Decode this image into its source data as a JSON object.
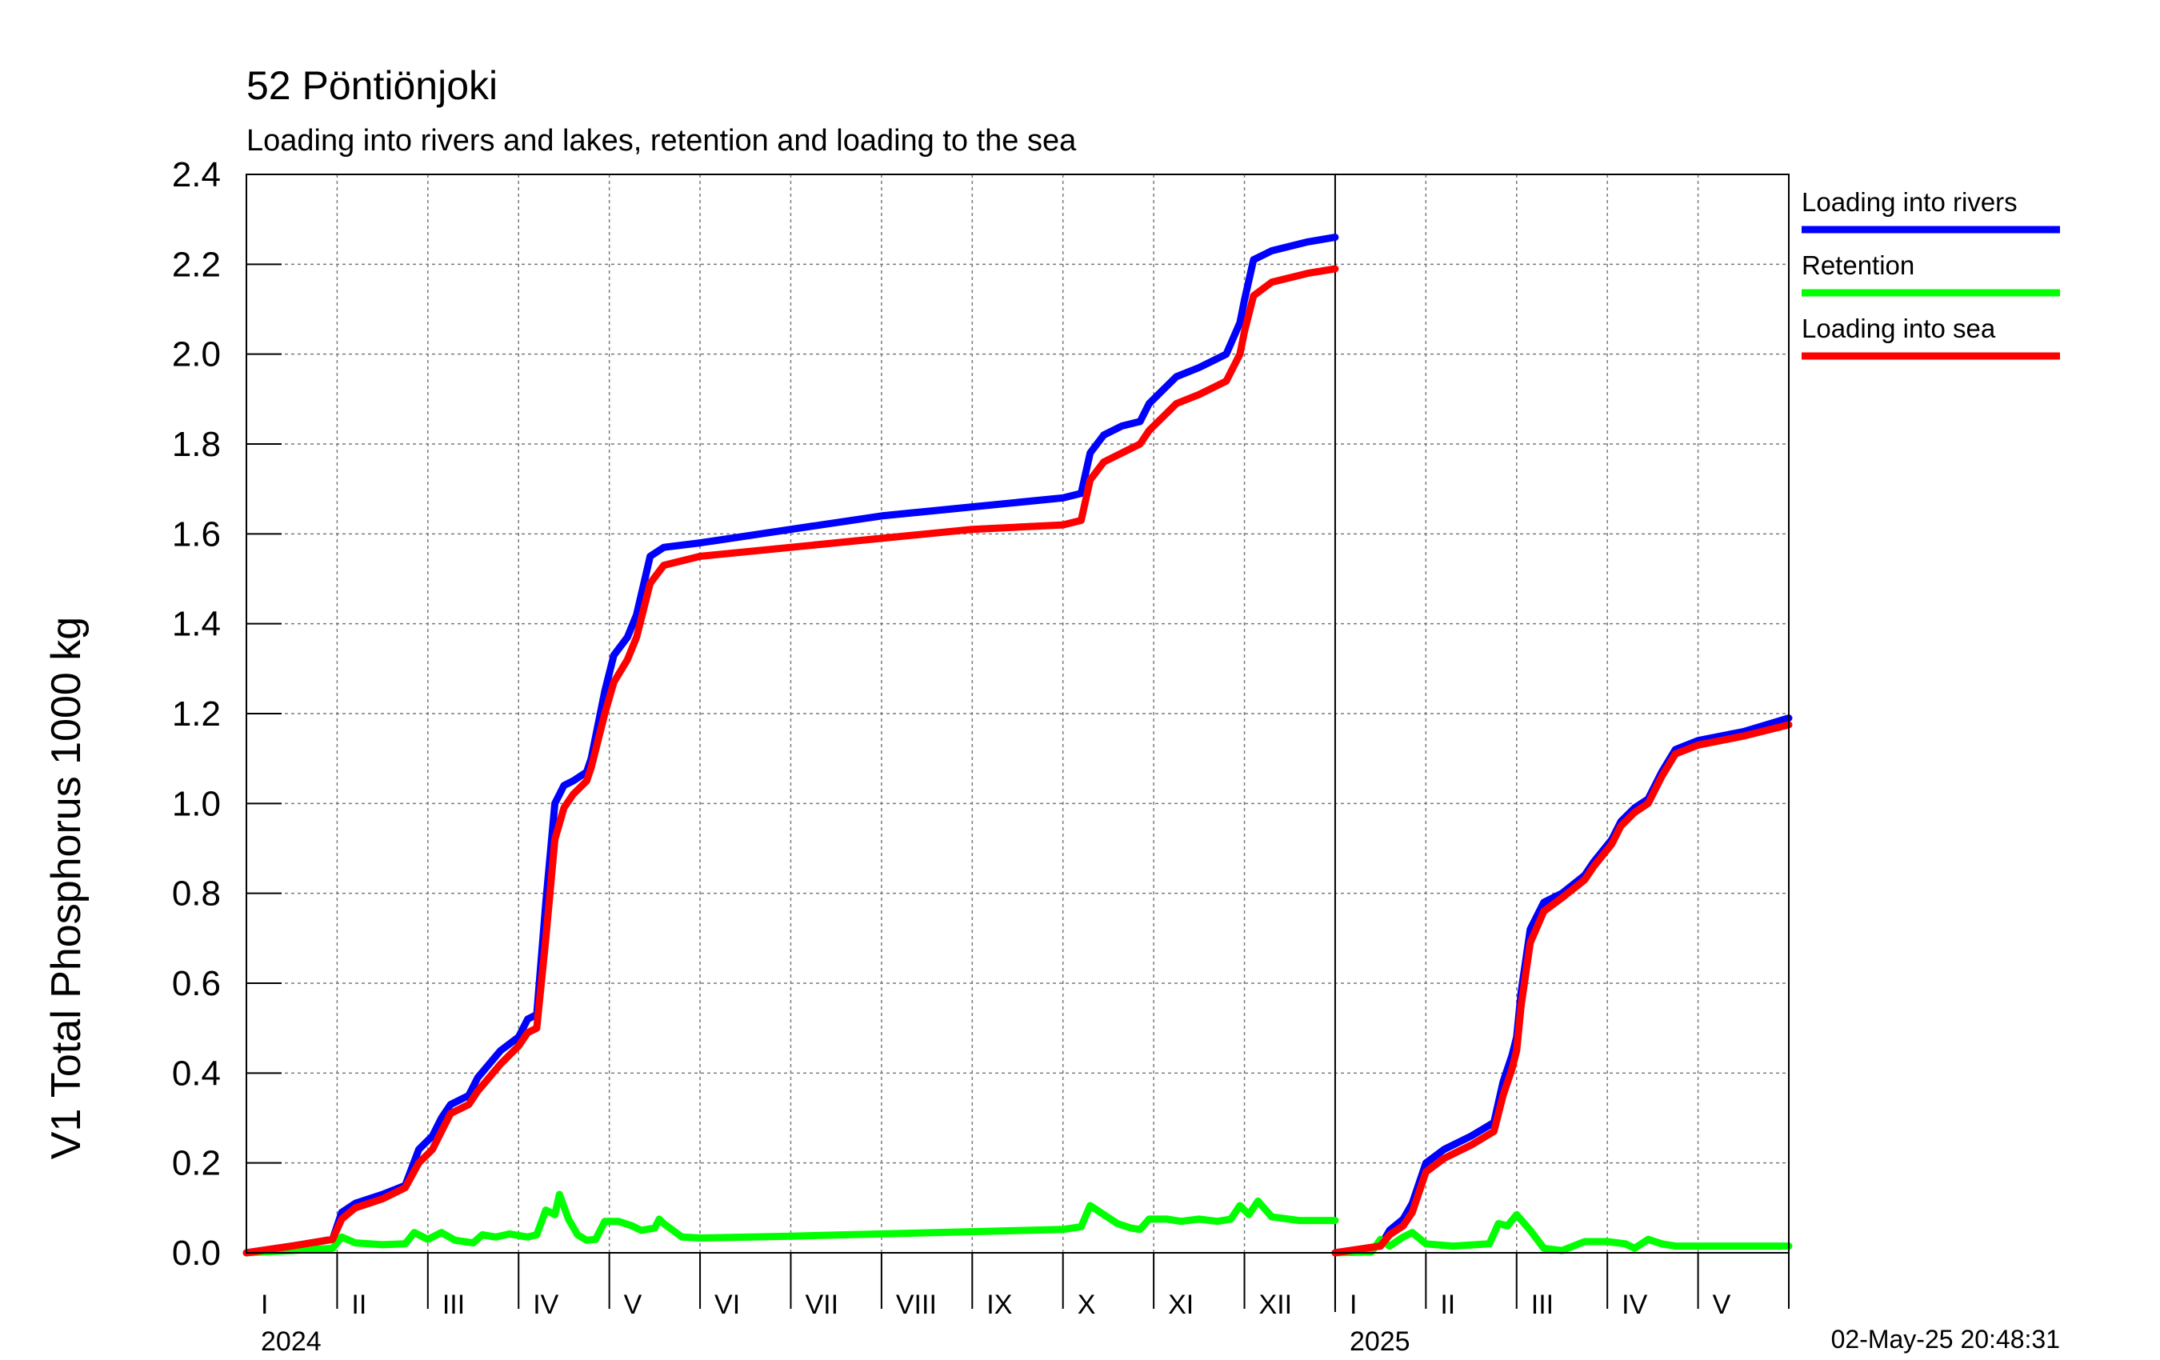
{
  "chart_data": {
    "type": "line",
    "title": "52 Pöntiönjoki",
    "subtitle": "Loading into rivers and lakes, retention and loading to the sea",
    "ylabel": "V1 Total Phosphorus 1000 kg",
    "ylim": [
      0,
      2.4
    ],
    "yticks": [
      "0.0",
      "0.2",
      "0.4",
      "0.6",
      "0.8",
      "1.0",
      "1.2",
      "1.4",
      "1.6",
      "1.8",
      "2.0",
      "2.2",
      "2.4"
    ],
    "x_unit": "month index from 2024-01-01",
    "xlim": [
      0,
      17
    ],
    "grid": true,
    "legend_position": "right",
    "timestamp": "02-May-25 20:48:31",
    "years": [
      {
        "label": "2024",
        "start": 0
      },
      {
        "label": "2025",
        "start": 12
      }
    ],
    "months": [
      {
        "label": "I",
        "start": 0,
        "end": 1
      },
      {
        "label": "II",
        "start": 1,
        "end": 2
      },
      {
        "label": "III",
        "start": 2,
        "end": 3
      },
      {
        "label": "IV",
        "start": 3,
        "end": 4
      },
      {
        "label": "V",
        "start": 4,
        "end": 5
      },
      {
        "label": "VI",
        "start": 5,
        "end": 6
      },
      {
        "label": "VII",
        "start": 6,
        "end": 7
      },
      {
        "label": "VIII",
        "start": 7,
        "end": 8
      },
      {
        "label": "IX",
        "start": 8,
        "end": 9
      },
      {
        "label": "X",
        "start": 9,
        "end": 10
      },
      {
        "label": "XI",
        "start": 10,
        "end": 11
      },
      {
        "label": "XII",
        "start": 11,
        "end": 12
      },
      {
        "label": "I",
        "start": 12,
        "end": 13
      },
      {
        "label": "II",
        "start": 13,
        "end": 14
      },
      {
        "label": "III",
        "start": 14,
        "end": 15
      },
      {
        "label": "IV",
        "start": 15,
        "end": 16
      },
      {
        "label": "V",
        "start": 16,
        "end": 17
      }
    ],
    "series": [
      {
        "name": "Loading into rivers",
        "color": "#0000ff",
        "segments": [
          [
            [
              0,
              0
            ],
            [
              0.5,
              0.015
            ],
            [
              0.95,
              0.03
            ],
            [
              1.05,
              0.09
            ],
            [
              1.2,
              0.11
            ],
            [
              1.5,
              0.13
            ],
            [
              1.75,
              0.15
            ],
            [
              1.9,
              0.23
            ],
            [
              2.05,
              0.26
            ],
            [
              2.15,
              0.3
            ],
            [
              2.25,
              0.33
            ],
            [
              2.45,
              0.35
            ],
            [
              2.55,
              0.39
            ],
            [
              2.8,
              0.45
            ],
            [
              3.0,
              0.48
            ],
            [
              3.1,
              0.52
            ],
            [
              3.2,
              0.53
            ],
            [
              3.3,
              0.78
            ],
            [
              3.4,
              1.0
            ],
            [
              3.5,
              1.04
            ],
            [
              3.6,
              1.05
            ],
            [
              3.75,
              1.07
            ],
            [
              3.8,
              1.1
            ],
            [
              3.95,
              1.25
            ],
            [
              4.05,
              1.33
            ],
            [
              4.2,
              1.37
            ],
            [
              4.3,
              1.42
            ],
            [
              4.45,
              1.55
            ],
            [
              4.6,
              1.57
            ],
            [
              5.0,
              1.58
            ],
            [
              6.0,
              1.61
            ],
            [
              7.0,
              1.64
            ],
            [
              8.0,
              1.66
            ],
            [
              9.0,
              1.68
            ],
            [
              9.2,
              1.69
            ],
            [
              9.3,
              1.78
            ],
            [
              9.45,
              1.82
            ],
            [
              9.65,
              1.84
            ],
            [
              9.85,
              1.85
            ],
            [
              9.95,
              1.89
            ],
            [
              10.1,
              1.92
            ],
            [
              10.25,
              1.95
            ],
            [
              10.5,
              1.97
            ],
            [
              10.7,
              1.99
            ],
            [
              10.8,
              2.0
            ],
            [
              10.95,
              2.07
            ],
            [
              11.0,
              2.12
            ],
            [
              11.1,
              2.21
            ],
            [
              11.3,
              2.23
            ],
            [
              11.7,
              2.25
            ],
            [
              12.0,
              2.26
            ]
          ],
          [
            [
              12.0,
              0
            ],
            [
              12.5,
              0.015
            ],
            [
              12.6,
              0.05
            ],
            [
              12.75,
              0.075
            ],
            [
              12.85,
              0.11
            ],
            [
              13.0,
              0.2
            ],
            [
              13.2,
              0.23
            ],
            [
              13.5,
              0.26
            ],
            [
              13.75,
              0.29
            ],
            [
              13.85,
              0.38
            ],
            [
              13.95,
              0.44
            ],
            [
              14.0,
              0.48
            ],
            [
              14.05,
              0.58
            ],
            [
              14.15,
              0.72
            ],
            [
              14.3,
              0.78
            ],
            [
              14.5,
              0.8
            ],
            [
              14.75,
              0.84
            ],
            [
              14.85,
              0.87
            ],
            [
              15.05,
              0.92
            ],
            [
              15.15,
              0.96
            ],
            [
              15.3,
              0.99
            ],
            [
              15.45,
              1.01
            ],
            [
              15.6,
              1.07
            ],
            [
              15.75,
              1.12
            ],
            [
              16.0,
              1.14
            ],
            [
              16.5,
              1.16
            ],
            [
              17.0,
              1.19
            ]
          ]
        ]
      },
      {
        "name": "Retention",
        "color": "#00ff00",
        "segments": [
          [
            [
              0,
              0
            ],
            [
              0.5,
              0.005
            ],
            [
              0.95,
              0.01
            ],
            [
              1.05,
              0.035
            ],
            [
              1.2,
              0.022
            ],
            [
              1.5,
              0.018
            ],
            [
              1.75,
              0.02
            ],
            [
              1.85,
              0.045
            ],
            [
              2.0,
              0.03
            ],
            [
              2.15,
              0.045
            ],
            [
              2.3,
              0.028
            ],
            [
              2.5,
              0.022
            ],
            [
              2.6,
              0.04
            ],
            [
              2.75,
              0.035
            ],
            [
              2.9,
              0.042
            ],
            [
              3.1,
              0.035
            ],
            [
              3.2,
              0.04
            ],
            [
              3.3,
              0.095
            ],
            [
              3.4,
              0.085
            ],
            [
              3.45,
              0.13
            ],
            [
              3.55,
              0.075
            ],
            [
              3.65,
              0.04
            ],
            [
              3.75,
              0.028
            ],
            [
              3.85,
              0.03
            ],
            [
              3.95,
              0.07
            ],
            [
              4.1,
              0.07
            ],
            [
              4.25,
              0.06
            ],
            [
              4.35,
              0.05
            ],
            [
              4.5,
              0.055
            ],
            [
              4.55,
              0.075
            ],
            [
              4.6,
              0.065
            ],
            [
              4.7,
              0.05
            ],
            [
              4.8,
              0.035
            ],
            [
              5.0,
              0.033
            ],
            [
              6.0,
              0.037
            ],
            [
              7.0,
              0.042
            ],
            [
              8.0,
              0.047
            ],
            [
              9.0,
              0.052
            ],
            [
              9.2,
              0.058
            ],
            [
              9.3,
              0.105
            ],
            [
              9.45,
              0.085
            ],
            [
              9.6,
              0.065
            ],
            [
              9.75,
              0.055
            ],
            [
              9.85,
              0.052
            ],
            [
              9.95,
              0.075
            ],
            [
              10.15,
              0.075
            ],
            [
              10.3,
              0.07
            ],
            [
              10.5,
              0.075
            ],
            [
              10.7,
              0.07
            ],
            [
              10.85,
              0.075
            ],
            [
              10.95,
              0.105
            ],
            [
              11.05,
              0.085
            ],
            [
              11.15,
              0.115
            ],
            [
              11.3,
              0.08
            ],
            [
              11.6,
              0.072
            ],
            [
              12.0,
              0.072
            ]
          ],
          [
            [
              12.0,
              0
            ],
            [
              12.4,
              0.002
            ],
            [
              12.5,
              0.03
            ],
            [
              12.6,
              0.015
            ],
            [
              12.75,
              0.035
            ],
            [
              12.85,
              0.045
            ],
            [
              13.0,
              0.02
            ],
            [
              13.3,
              0.015
            ],
            [
              13.7,
              0.02
            ],
            [
              13.8,
              0.065
            ],
            [
              13.9,
              0.06
            ],
            [
              14.0,
              0.085
            ],
            [
              14.15,
              0.05
            ],
            [
              14.3,
              0.01
            ],
            [
              14.5,
              0.005
            ],
            [
              14.75,
              0.025
            ],
            [
              15.0,
              0.025
            ],
            [
              15.2,
              0.02
            ],
            [
              15.3,
              0.01
            ],
            [
              15.45,
              0.03
            ],
            [
              15.6,
              0.02
            ],
            [
              15.75,
              0.015
            ],
            [
              16.0,
              0.015
            ],
            [
              16.5,
              0.015
            ],
            [
              17.0,
              0.015
            ]
          ]
        ]
      },
      {
        "name": "Loading into sea",
        "color": "#ff0000",
        "segments": [
          [
            [
              0,
              0
            ],
            [
              0.5,
              0.015
            ],
            [
              0.95,
              0.03
            ],
            [
              1.05,
              0.075
            ],
            [
              1.2,
              0.1
            ],
            [
              1.5,
              0.12
            ],
            [
              1.75,
              0.145
            ],
            [
              1.9,
              0.2
            ],
            [
              2.05,
              0.23
            ],
            [
              2.15,
              0.27
            ],
            [
              2.25,
              0.31
            ],
            [
              2.45,
              0.33
            ],
            [
              2.55,
              0.36
            ],
            [
              2.8,
              0.42
            ],
            [
              3.0,
              0.46
            ],
            [
              3.1,
              0.49
            ],
            [
              3.2,
              0.5
            ],
            [
              3.3,
              0.7
            ],
            [
              3.4,
              0.92
            ],
            [
              3.5,
              0.99
            ],
            [
              3.6,
              1.02
            ],
            [
              3.75,
              1.05
            ],
            [
              3.8,
              1.08
            ],
            [
              3.95,
              1.2
            ],
            [
              4.05,
              1.27
            ],
            [
              4.2,
              1.32
            ],
            [
              4.3,
              1.37
            ],
            [
              4.45,
              1.49
            ],
            [
              4.6,
              1.53
            ],
            [
              5.0,
              1.55
            ],
            [
              6.0,
              1.57
            ],
            [
              7.0,
              1.59
            ],
            [
              8.0,
              1.61
            ],
            [
              9.0,
              1.62
            ],
            [
              9.2,
              1.63
            ],
            [
              9.3,
              1.72
            ],
            [
              9.45,
              1.76
            ],
            [
              9.65,
              1.78
            ],
            [
              9.85,
              1.8
            ],
            [
              9.95,
              1.83
            ],
            [
              10.1,
              1.86
            ],
            [
              10.25,
              1.89
            ],
            [
              10.5,
              1.91
            ],
            [
              10.7,
              1.93
            ],
            [
              10.8,
              1.94
            ],
            [
              10.95,
              2.0
            ],
            [
              11.0,
              2.05
            ],
            [
              11.1,
              2.13
            ],
            [
              11.3,
              2.16
            ],
            [
              11.7,
              2.18
            ],
            [
              12.0,
              2.19
            ]
          ],
          [
            [
              12.0,
              0
            ],
            [
              12.5,
              0.015
            ],
            [
              12.6,
              0.04
            ],
            [
              12.75,
              0.06
            ],
            [
              12.85,
              0.09
            ],
            [
              13.0,
              0.18
            ],
            [
              13.2,
              0.21
            ],
            [
              13.5,
              0.24
            ],
            [
              13.75,
              0.27
            ],
            [
              13.85,
              0.35
            ],
            [
              13.95,
              0.41
            ],
            [
              14.0,
              0.45
            ],
            [
              14.05,
              0.55
            ],
            [
              14.15,
              0.69
            ],
            [
              14.3,
              0.76
            ],
            [
              14.5,
              0.79
            ],
            [
              14.75,
              0.83
            ],
            [
              14.85,
              0.86
            ],
            [
              15.05,
              0.91
            ],
            [
              15.15,
              0.95
            ],
            [
              15.3,
              0.98
            ],
            [
              15.45,
              1.0
            ],
            [
              15.6,
              1.06
            ],
            [
              15.75,
              1.11
            ],
            [
              16.0,
              1.13
            ],
            [
              16.5,
              1.15
            ],
            [
              17.0,
              1.175
            ]
          ]
        ]
      }
    ]
  }
}
